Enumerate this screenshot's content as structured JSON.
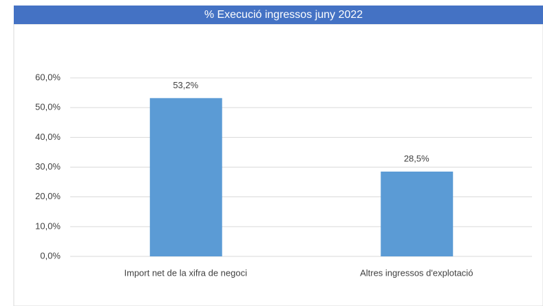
{
  "chart_data": {
    "type": "bar",
    "title": "% Execució ingressos juny 2022",
    "categories": [
      "Import net de la xifra de negoci",
      "Altres ingressos d'explotació"
    ],
    "values": [
      53.2,
      28.5
    ],
    "value_labels": [
      "53,2%",
      "28,5%"
    ],
    "color": "#5b9bd5",
    "ylim": [
      0,
      60
    ],
    "yticks": [
      {
        "value": 0,
        "label": "0,0%"
      },
      {
        "value": 10,
        "label": "10,0%"
      },
      {
        "value": 20,
        "label": "20,0%"
      },
      {
        "value": 30,
        "label": "30,0%"
      },
      {
        "value": 40,
        "label": "40,0%"
      },
      {
        "value": 50,
        "label": "50,0%"
      },
      {
        "value": 60,
        "label": "60,0%"
      }
    ],
    "grid": true
  }
}
